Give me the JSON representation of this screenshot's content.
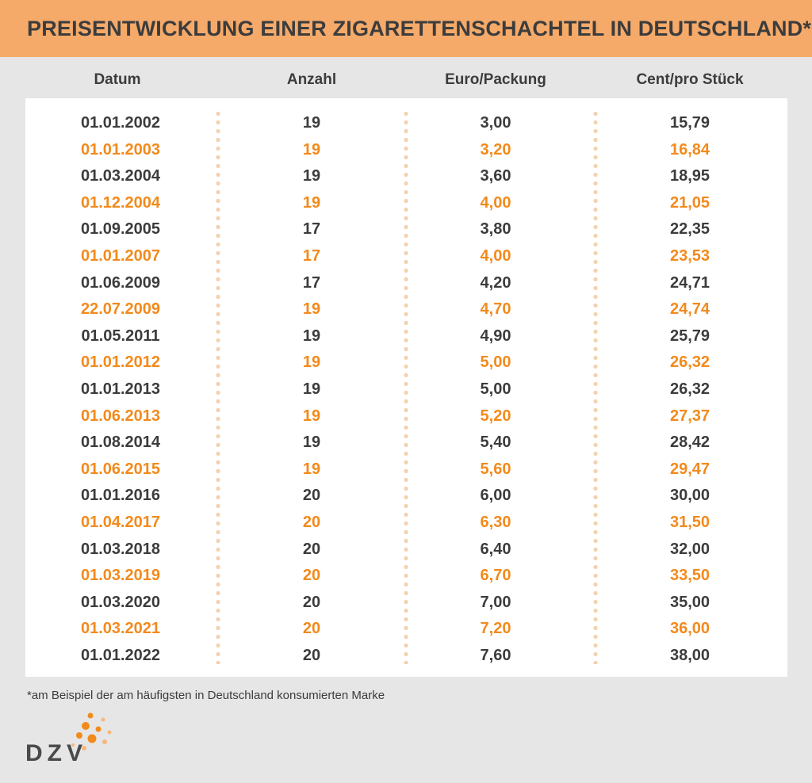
{
  "title": "PREISENTWICKLUNG EINER ZIGARETTENSCHACHTEL IN DEUTSCHLAND*",
  "chart_data": {
    "type": "table",
    "columns": [
      "Datum",
      "Anzahl",
      "Euro/Packung",
      "Cent/pro Stück"
    ],
    "rows": [
      [
        "01.01.2002",
        "19",
        "3,00",
        "15,79"
      ],
      [
        "01.01.2003",
        "19",
        "3,20",
        "16,84"
      ],
      [
        "01.03.2004",
        "19",
        "3,60",
        "18,95"
      ],
      [
        "01.12.2004",
        "19",
        "4,00",
        "21,05"
      ],
      [
        "01.09.2005",
        "17",
        "3,80",
        "22,35"
      ],
      [
        "01.01.2007",
        "17",
        "4,00",
        "23,53"
      ],
      [
        "01.06.2009",
        "17",
        "4,20",
        "24,71"
      ],
      [
        "22.07.2009",
        "19",
        "4,70",
        "24,74"
      ],
      [
        "01.05.2011",
        "19",
        "4,90",
        "25,79"
      ],
      [
        "01.01.2012",
        "19",
        "5,00",
        "26,32"
      ],
      [
        "01.01.2013",
        "19",
        "5,00",
        "26,32"
      ],
      [
        "01.06.2013",
        "19",
        "5,20",
        "27,37"
      ],
      [
        "01.08.2014",
        "19",
        "5,40",
        "28,42"
      ],
      [
        "01.06.2015",
        "19",
        "5,60",
        "29,47"
      ],
      [
        "01.01.2016",
        "20",
        "6,00",
        "30,00"
      ],
      [
        "01.04.2017",
        "20",
        "6,30",
        "31,50"
      ],
      [
        "01.03.2018",
        "20",
        "6,40",
        "32,00"
      ],
      [
        "01.03.2019",
        "20",
        "6,70",
        "33,50"
      ],
      [
        "01.03.2020",
        "20",
        "7,00",
        "35,00"
      ],
      [
        "01.03.2021",
        "20",
        "7,20",
        "36,00"
      ],
      [
        "01.01.2022",
        "20",
        "7,60",
        "38,00"
      ]
    ]
  },
  "footnote": "*am Beispiel der am häufigsten in Deutschland konsumierten Marke",
  "logo": {
    "text": "DZV"
  },
  "colors": {
    "title_bar": "#f5aa6a",
    "background": "#e6e6e6",
    "text_dark": "#3c3c3c",
    "accent_orange": "#f28a1c",
    "divider_dots": "#f3d2b0"
  }
}
